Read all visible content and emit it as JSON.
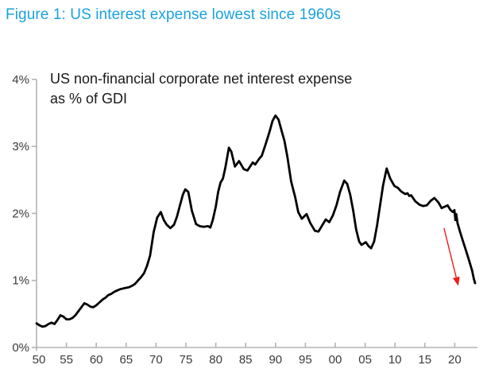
{
  "figure_title": "Figure 1: US interest expense lowest since 1960s",
  "colors": {
    "title": "#1aa2de",
    "subtitle": "#1a1a1a",
    "axis": "#b3b3b3",
    "tick_label": "#3a3a3a",
    "line": "#000000",
    "arrow": "#ee1c1c",
    "background": "#ffffff"
  },
  "chart_data": {
    "type": "line",
    "title": "US non-financial corporate net interest expense as % of GDI",
    "subtitle_lines": {
      "line1": "US non-financial corporate net interest expense",
      "line2": "as % of GDI"
    },
    "xlabel": "",
    "ylabel": "",
    "grid": false,
    "legend": "none",
    "x_axis": {
      "min": 1950,
      "max": 2023.8,
      "tick_years": [
        1950,
        1955,
        1960,
        1965,
        1970,
        1975,
        1980,
        1985,
        1990,
        1995,
        2000,
        2005,
        2010,
        2015,
        2020
      ],
      "tick_labels": [
        "50",
        "55",
        "60",
        "65",
        "70",
        "75",
        "80",
        "85",
        "90",
        "95",
        "00",
        "05",
        "10",
        "15",
        "20"
      ]
    },
    "y_axis": {
      "min": 0,
      "max": 4,
      "tick_values": [
        0,
        1,
        2,
        3,
        4
      ],
      "tick_labels": [
        "0%",
        "1%",
        "2%",
        "3%",
        "4%"
      ]
    },
    "series": [
      {
        "name": "US non-financial corporate net interest expense as % of GDI",
        "color": "#000000",
        "points": [
          [
            1950.0,
            0.36
          ],
          [
            1950.5,
            0.33
          ],
          [
            1951.0,
            0.31
          ],
          [
            1951.5,
            0.32
          ],
          [
            1952.0,
            0.35
          ],
          [
            1952.5,
            0.37
          ],
          [
            1953.0,
            0.35
          ],
          [
            1953.5,
            0.41
          ],
          [
            1954.0,
            0.48
          ],
          [
            1954.5,
            0.46
          ],
          [
            1955.0,
            0.42
          ],
          [
            1955.5,
            0.42
          ],
          [
            1956.0,
            0.44
          ],
          [
            1956.5,
            0.48
          ],
          [
            1957.0,
            0.54
          ],
          [
            1957.5,
            0.6
          ],
          [
            1958.0,
            0.66
          ],
          [
            1958.5,
            0.64
          ],
          [
            1959.0,
            0.61
          ],
          [
            1959.5,
            0.6
          ],
          [
            1960.0,
            0.63
          ],
          [
            1960.5,
            0.67
          ],
          [
            1961.0,
            0.71
          ],
          [
            1961.5,
            0.74
          ],
          [
            1962.0,
            0.78
          ],
          [
            1962.5,
            0.8
          ],
          [
            1963.0,
            0.83
          ],
          [
            1963.5,
            0.85
          ],
          [
            1964.0,
            0.87
          ],
          [
            1964.5,
            0.88
          ],
          [
            1965.0,
            0.89
          ],
          [
            1965.5,
            0.9
          ],
          [
            1966.0,
            0.92
          ],
          [
            1966.5,
            0.95
          ],
          [
            1967.0,
            1.0
          ],
          [
            1967.5,
            1.05
          ],
          [
            1968.0,
            1.11
          ],
          [
            1968.5,
            1.22
          ],
          [
            1969.0,
            1.37
          ],
          [
            1969.6,
            1.72
          ],
          [
            1970.2,
            1.94
          ],
          [
            1970.8,
            2.02
          ],
          [
            1971.3,
            1.9
          ],
          [
            1971.8,
            1.83
          ],
          [
            1972.4,
            1.78
          ],
          [
            1973.0,
            1.83
          ],
          [
            1973.5,
            1.95
          ],
          [
            1974.0,
            2.12
          ],
          [
            1974.5,
            2.28
          ],
          [
            1974.9,
            2.36
          ],
          [
            1975.4,
            2.32
          ],
          [
            1976.0,
            2.04
          ],
          [
            1976.7,
            1.84
          ],
          [
            1977.3,
            1.81
          ],
          [
            1978.0,
            1.8
          ],
          [
            1978.7,
            1.81
          ],
          [
            1979.1,
            1.79
          ],
          [
            1979.5,
            1.9
          ],
          [
            1980.0,
            2.1
          ],
          [
            1980.4,
            2.32
          ],
          [
            1980.8,
            2.46
          ],
          [
            1981.2,
            2.52
          ],
          [
            1981.6,
            2.68
          ],
          [
            1982.2,
            2.98
          ],
          [
            1982.6,
            2.92
          ],
          [
            1983.2,
            2.7
          ],
          [
            1983.9,
            2.78
          ],
          [
            1984.7,
            2.66
          ],
          [
            1985.3,
            2.64
          ],
          [
            1986.2,
            2.76
          ],
          [
            1986.6,
            2.73
          ],
          [
            1987.3,
            2.82
          ],
          [
            1987.7,
            2.86
          ],
          [
            1988.3,
            3.02
          ],
          [
            1989.0,
            3.22
          ],
          [
            1989.5,
            3.38
          ],
          [
            1990.0,
            3.46
          ],
          [
            1990.5,
            3.4
          ],
          [
            1991.0,
            3.24
          ],
          [
            1991.5,
            3.08
          ],
          [
            1992.0,
            2.84
          ],
          [
            1992.6,
            2.48
          ],
          [
            1993.3,
            2.24
          ],
          [
            1993.8,
            2.02
          ],
          [
            1994.4,
            1.92
          ],
          [
            1995.2,
            1.99
          ],
          [
            1995.8,
            1.86
          ],
          [
            1996.6,
            1.74
          ],
          [
            1997.2,
            1.73
          ],
          [
            1998.0,
            1.85
          ],
          [
            1998.4,
            1.91
          ],
          [
            1999.0,
            1.87
          ],
          [
            1999.6,
            1.97
          ],
          [
            2000.2,
            2.12
          ],
          [
            2000.8,
            2.32
          ],
          [
            2001.5,
            2.49
          ],
          [
            2002.0,
            2.44
          ],
          [
            2002.5,
            2.28
          ],
          [
            2003.0,
            2.04
          ],
          [
            2003.5,
            1.76
          ],
          [
            2004.0,
            1.58
          ],
          [
            2004.4,
            1.53
          ],
          [
            2005.1,
            1.57
          ],
          [
            2005.6,
            1.51
          ],
          [
            2006.0,
            1.48
          ],
          [
            2006.5,
            1.58
          ],
          [
            2007.0,
            1.82
          ],
          [
            2007.5,
            2.12
          ],
          [
            2008.0,
            2.42
          ],
          [
            2008.6,
            2.67
          ],
          [
            2009.2,
            2.52
          ],
          [
            2009.9,
            2.41
          ],
          [
            2010.5,
            2.38
          ],
          [
            2011.0,
            2.33
          ],
          [
            2011.7,
            2.29
          ],
          [
            2012.1,
            2.3
          ],
          [
            2012.4,
            2.26
          ],
          [
            2012.7,
            2.27
          ],
          [
            2013.4,
            2.18
          ],
          [
            2014.1,
            2.13
          ],
          [
            2014.7,
            2.11
          ],
          [
            2015.3,
            2.12
          ],
          [
            2016.0,
            2.19
          ],
          [
            2016.6,
            2.23
          ],
          [
            2017.3,
            2.16
          ],
          [
            2017.8,
            2.08
          ],
          [
            2018.3,
            2.1
          ],
          [
            2018.8,
            2.12
          ],
          [
            2019.3,
            2.05
          ],
          [
            2019.7,
            2.02
          ],
          [
            2019.95,
            2.05
          ],
          [
            2020.1,
            1.9
          ],
          [
            2020.25,
            1.99
          ],
          [
            2020.45,
            1.86
          ],
          [
            2020.9,
            1.72
          ],
          [
            2021.4,
            1.58
          ],
          [
            2021.9,
            1.44
          ],
          [
            2022.4,
            1.3
          ],
          [
            2022.9,
            1.15
          ],
          [
            2023.2,
            1.02
          ],
          [
            2023.4,
            0.96
          ]
        ]
      }
    ],
    "annotations": [
      {
        "type": "arrow",
        "color": "#ee1c1c",
        "from": [
          2018.2,
          1.78
        ],
        "to": [
          2020.6,
          0.92
        ]
      }
    ]
  }
}
